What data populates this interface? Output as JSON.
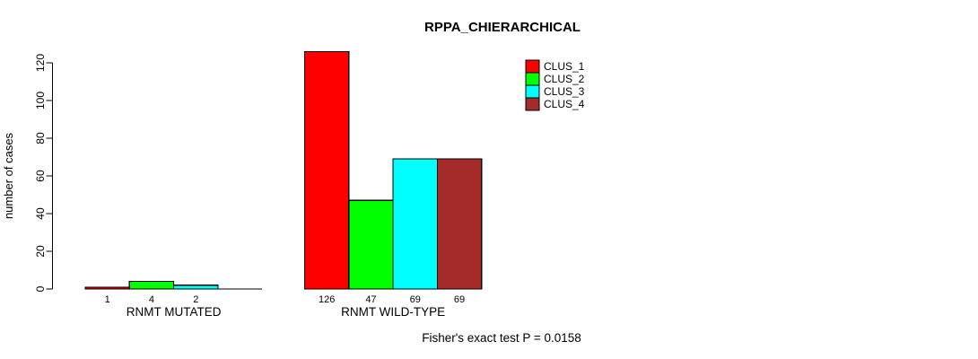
{
  "chart_data": {
    "type": "bar",
    "title": "RPPA_CHIERARCHICAL",
    "ylabel": "number of cases",
    "xlabel": "",
    "categories": [
      "RNMT MUTATED",
      "RNMT WILD-TYPE"
    ],
    "series": [
      {
        "name": "CLUS_1",
        "color": "#ff0000",
        "values": [
          1,
          126
        ]
      },
      {
        "name": "CLUS_2",
        "color": "#00ff00",
        "values": [
          4,
          47
        ]
      },
      {
        "name": "CLUS_3",
        "color": "#00ffff",
        "values": [
          2,
          69
        ]
      },
      {
        "name": "CLUS_4",
        "color": "#a52a2a",
        "values": [
          0,
          69
        ]
      }
    ],
    "bar_value_labels": [
      [
        "1",
        "4",
        "2",
        ""
      ],
      [
        "126",
        "47",
        "69",
        "69"
      ]
    ],
    "yticks": [
      0,
      20,
      40,
      60,
      80,
      100,
      120
    ],
    "ylim": [
      0,
      126
    ],
    "grid": false,
    "legend_position": "top-right",
    "legend_title": "",
    "annotation": "Fisher's exact test P = 0.0158",
    "bar_border_color": "#000000",
    "axis_color": "#000000",
    "background_color": "#ffffff"
  }
}
